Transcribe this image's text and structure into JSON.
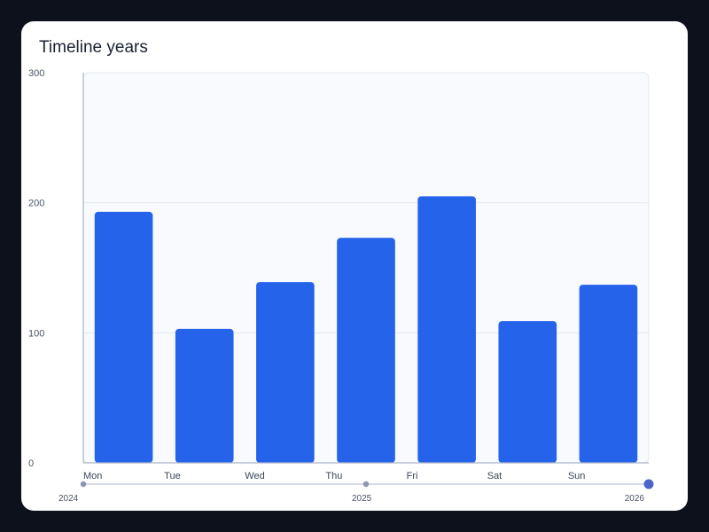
{
  "chart_data": {
    "type": "bar",
    "title": "Timeline years",
    "categories": [
      "Mon",
      "Tue",
      "Wed",
      "Thu",
      "Fri",
      "Sat",
      "Sun"
    ],
    "series": [
      {
        "values": [
          193,
          103,
          139,
          173,
          205,
          109,
          137
        ]
      }
    ],
    "ylim": [
      0,
      300
    ],
    "yticks": [
      0,
      100,
      200,
      300
    ],
    "grid": true,
    "bar_color": "#2563eb",
    "timeline": {
      "labels": [
        "2024",
        "2025",
        "2026"
      ],
      "selected": "2026"
    }
  }
}
